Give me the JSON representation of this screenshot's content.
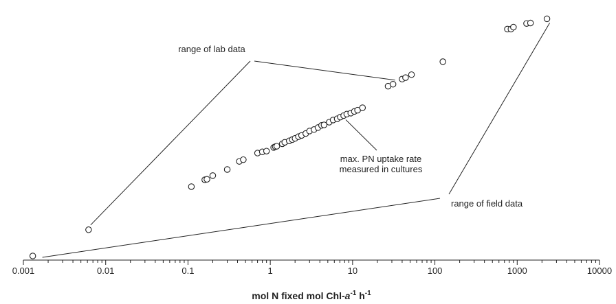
{
  "chart_data": {
    "type": "scatter",
    "xscale": "log",
    "xlim": [
      0.001,
      10000
    ],
    "xticks": [
      "0.001",
      "0.01",
      "0.1",
      "1",
      "10",
      "100",
      "1000",
      "10000"
    ],
    "xlabel": {
      "main": "mol N fixed mol Chl-",
      "italic": "a",
      "sup1": "-1",
      "mid": " h",
      "sup2": "-1"
    },
    "y_axis": "none",
    "annotations": {
      "lab": "range of lab data",
      "pn_line1": "max. PN uptake rate",
      "pn_line2": "measured in cultures",
      "field": "range of field data"
    },
    "x": [
      0.0013,
      0.0062,
      0.11,
      0.16,
      0.17,
      0.2,
      0.3,
      0.42,
      0.47,
      0.7,
      0.8,
      0.9,
      1.1,
      1.15,
      1.2,
      1.4,
      1.5,
      1.7,
      1.85,
      2.0,
      2.2,
      2.4,
      2.7,
      3.0,
      3.4,
      3.8,
      4.2,
      4.5,
      5.2,
      5.8,
      6.5,
      7.1,
      7.8,
      8.5,
      9.5,
      10.5,
      11.5,
      13.2,
      27,
      31,
      40,
      44,
      52,
      125,
      760,
      840,
      900,
      1300,
      1450,
      2300
    ],
    "y": [
      0,
      0.107,
      0.283,
      0.311,
      0.313,
      0.328,
      0.353,
      0.386,
      0.393,
      0.42,
      0.425,
      0.428,
      0.443,
      0.446,
      0.448,
      0.458,
      0.464,
      0.47,
      0.475,
      0.48,
      0.487,
      0.492,
      0.5,
      0.51,
      0.516,
      0.524,
      0.533,
      0.535,
      0.546,
      0.555,
      0.56,
      0.567,
      0.573,
      0.579,
      0.583,
      0.59,
      0.595,
      0.605,
      0.693,
      0.701,
      0.722,
      0.728,
      0.74,
      0.793,
      0.926,
      0.926,
      0.934,
      0.949,
      0.951,
      0.968
    ]
  }
}
